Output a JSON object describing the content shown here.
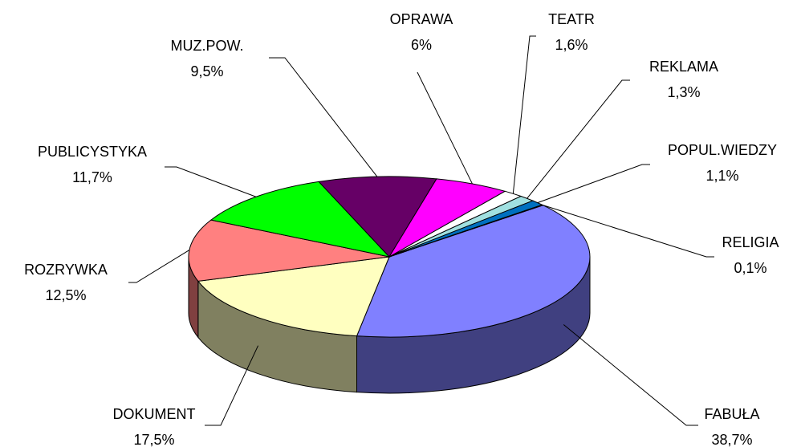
{
  "chart_data": {
    "type": "pie",
    "categories": [
      "FABUŁA",
      "DOKUMENT",
      "ROZRYWKA",
      "PUBLICYSTYKA",
      "MUZ.POW.",
      "OPRAWA",
      "TEATR",
      "REKLAMA",
      "POPUL.WIEDZY",
      "RELIGIA"
    ],
    "values": [
      38.7,
      17.5,
      12.5,
      11.7,
      9.5,
      6,
      1.6,
      1.3,
      1.1,
      0.1
    ],
    "value_labels": [
      "38,7%",
      "17,5%",
      "12,5%",
      "11,7%",
      "9,5%",
      "6%",
      "1,6%",
      "1,3%",
      "1,1%",
      "0,1%"
    ],
    "colors": [
      "#8080ff",
      "#ffffc0",
      "#ff8080",
      "#00ff00",
      "#660066",
      "#ff00ff",
      "#ffffff",
      "#a0e0e0",
      "#0070c0",
      "#000080"
    ]
  }
}
